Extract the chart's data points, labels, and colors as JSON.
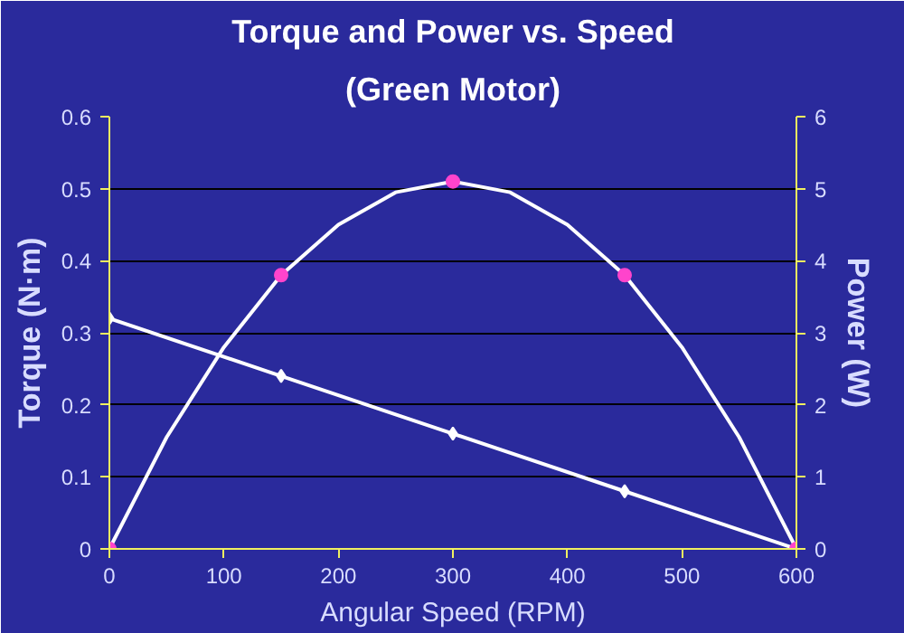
{
  "chart_data": {
    "type": "line",
    "title": "Torque and Power vs. Speed",
    "subtitle": "(Green Motor)",
    "xlabel": "Angular Speed (RPM)",
    "ylabel": "Torque (N·m)",
    "y2label": "Power (W)",
    "x": [
      0,
      150,
      300,
      450,
      600
    ],
    "series": [
      {
        "color": "#ffffff",
        "values": [
          0.32,
          0.24,
          0.16,
          0.08,
          0
        ],
        "marker": "diamond"
      },
      {
        "color": "#ffffff",
        "x": [
          0,
          50,
          100,
          150,
          200,
          250,
          300,
          350,
          400,
          450,
          500,
          550,
          600
        ],
        "values": [
          0,
          1.55,
          2.8,
          3.8,
          4.5,
          4.95,
          5.1,
          4.95,
          4.5,
          3.8,
          2.8,
          1.55,
          0
        ],
        "axis": "y2",
        "marker": "none"
      },
      {
        "type": "scatter",
        "color": "#ff44cc",
        "values": [
          0,
          3.8,
          5.1,
          3.8,
          0
        ],
        "axis": "y2",
        "marker": "circle"
      }
    ],
    "xlim": [
      0,
      600
    ],
    "xticks": [
      0,
      100,
      200,
      300,
      400,
      500,
      600
    ],
    "ylim": [
      0,
      0.6
    ],
    "yticks": [
      0,
      0.1,
      0.2,
      0.3,
      0.4,
      0.5,
      0.6
    ],
    "y2lim": [
      0,
      6
    ],
    "y2ticks": [
      0,
      1,
      2,
      3,
      4,
      5,
      6
    ],
    "grid": "y",
    "line_style": "solid"
  }
}
